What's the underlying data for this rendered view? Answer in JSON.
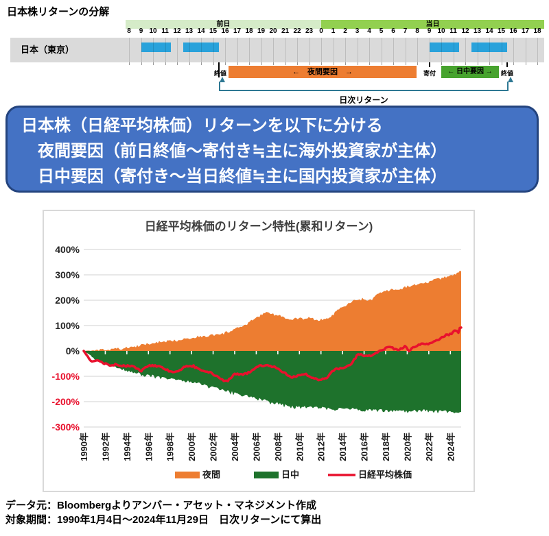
{
  "page_title": "日本株リターンの分解",
  "timeline": {
    "prev_day_label": "前日",
    "current_day_label": "当日",
    "hours": [
      "8",
      "9",
      "10",
      "11",
      "12",
      "13",
      "14",
      "15",
      "16",
      "17",
      "18",
      "19",
      "20",
      "21",
      "22",
      "23",
      "0",
      "1",
      "2",
      "3",
      "4",
      "5",
      "6",
      "7",
      "8",
      "9",
      "10",
      "11",
      "12",
      "13",
      "14",
      "15",
      "16",
      "17",
      "18"
    ],
    "market_label": "日本（東京）",
    "sessions": [
      {
        "day": "prev",
        "start": 9,
        "end": 11.5
      },
      {
        "day": "prev",
        "start": 12.5,
        "end": 15.5
      },
      {
        "day": "cur",
        "start": 9,
        "end": 11.5
      },
      {
        "day": "cur",
        "start": 12.5,
        "end": 15.5
      }
    ],
    "markers": [
      {
        "day": "prev",
        "time": 15.5,
        "len": 22
      },
      {
        "day": "cur",
        "time": 9,
        "len": 7
      },
      {
        "day": "cur",
        "time": 15.5,
        "len": 7
      }
    ],
    "close_label_left": "終値",
    "open_label": "寄付",
    "close_label_right": "終値",
    "night_factor_label": "←　夜間要因　→",
    "day_factor_label": "← 日中要因 →",
    "daily_return_label": "日次リターン"
  },
  "callout": {
    "line1": "日本株（日経平均株価）リターンを以下に分ける",
    "line2": "　夜間要因（前日終値～寄付き≒主に海外投資家が主体）",
    "line3": "　日中要因（寄付き～当日終値≒主に国内投資家が主体）"
  },
  "chart_data": {
    "type": "area+line",
    "title": "日経平均株価のリターン特性(累和リターン)",
    "x_range": [
      1990,
      2025
    ],
    "ylim": [
      -300,
      400
    ],
    "y_tick_values": [
      400,
      300,
      200,
      100,
      0,
      -100,
      -200,
      -300
    ],
    "y_tick_labels": [
      "400%",
      "300%",
      "200%",
      "100%",
      "0%",
      "-100%",
      "-200%",
      "-300%"
    ],
    "x_tick_years": [
      1990,
      1992,
      1994,
      1996,
      1998,
      2000,
      2002,
      2004,
      2006,
      2008,
      2010,
      2012,
      2014,
      2016,
      2018,
      2020,
      2022,
      2024
    ],
    "x_tick_labels": [
      "1990年",
      "1992年",
      "1994年",
      "1996年",
      "1998年",
      "2000年",
      "2002年",
      "2004年",
      "2006年",
      "2008年",
      "2010年",
      "2012年",
      "2014年",
      "2016年",
      "2018年",
      "2020年",
      "2022年",
      "2024年"
    ],
    "grid": true,
    "legend_position": "bottom",
    "negative_tick_color": "#e8112d",
    "series": [
      {
        "name": "夜間",
        "type": "area",
        "color": "#ed7d31",
        "points": [
          [
            1990,
            0
          ],
          [
            1991,
            2
          ],
          [
            1992,
            4
          ],
          [
            1993,
            8
          ],
          [
            1994,
            12
          ],
          [
            1995,
            20
          ],
          [
            1996,
            28
          ],
          [
            1997,
            34
          ],
          [
            1998,
            38
          ],
          [
            1999,
            46
          ],
          [
            2000,
            52
          ],
          [
            2001,
            57
          ],
          [
            2002,
            62
          ],
          [
            2003,
            68
          ],
          [
            2004,
            85
          ],
          [
            2005,
            102
          ],
          [
            2006,
            132
          ],
          [
            2006.8,
            152
          ],
          [
            2007.5,
            148
          ],
          [
            2008.5,
            132
          ],
          [
            2009.3,
            122
          ],
          [
            2010,
            128
          ],
          [
            2011,
            130
          ],
          [
            2011.8,
            121
          ],
          [
            2012.5,
            125
          ],
          [
            2013,
            140
          ],
          [
            2014,
            172
          ],
          [
            2015,
            196
          ],
          [
            2015.8,
            205
          ],
          [
            2016.5,
            198
          ],
          [
            2017,
            215
          ],
          [
            2018,
            238
          ],
          [
            2019,
            242
          ],
          [
            2020,
            252
          ],
          [
            2021,
            266
          ],
          [
            2022,
            272
          ],
          [
            2023,
            285
          ],
          [
            2024,
            298
          ],
          [
            2024.92,
            312
          ]
        ]
      },
      {
        "name": "日中",
        "type": "area",
        "color": "#1e722c",
        "points": [
          [
            1990,
            0
          ],
          [
            1990.5,
            -12
          ],
          [
            1991,
            -28
          ],
          [
            1992,
            -48
          ],
          [
            1993,
            -62
          ],
          [
            1994,
            -72
          ],
          [
            1995,
            -85
          ],
          [
            1996,
            -93
          ],
          [
            1997,
            -100
          ],
          [
            1998,
            -105
          ],
          [
            1999,
            -112
          ],
          [
            2000,
            -119
          ],
          [
            2001,
            -128
          ],
          [
            2002,
            -140
          ],
          [
            2003,
            -152
          ],
          [
            2004,
            -162
          ],
          [
            2005,
            -172
          ],
          [
            2006,
            -184
          ],
          [
            2007,
            -194
          ],
          [
            2008,
            -203
          ],
          [
            2009,
            -212
          ],
          [
            2010,
            -216
          ],
          [
            2011,
            -219
          ],
          [
            2012,
            -221
          ],
          [
            2013,
            -223
          ],
          [
            2014,
            -225
          ],
          [
            2015,
            -226
          ],
          [
            2016,
            -228
          ],
          [
            2017,
            -228
          ],
          [
            2018,
            -229
          ],
          [
            2019,
            -231
          ],
          [
            2020,
            -236
          ],
          [
            2021,
            -230
          ],
          [
            2022,
            -232
          ],
          [
            2023,
            -234
          ],
          [
            2024,
            -236
          ],
          [
            2024.92,
            -239
          ]
        ]
      },
      {
        "name": "日経平均株価",
        "type": "line",
        "color": "#e8112d",
        "points": [
          [
            1990,
            0
          ],
          [
            1990.3,
            -18
          ],
          [
            1990.7,
            -42
          ],
          [
            1991.2,
            -35
          ],
          [
            1991.8,
            -50
          ],
          [
            1992.5,
            -62
          ],
          [
            1993,
            -50
          ],
          [
            1993.8,
            -58
          ],
          [
            1994.5,
            -62
          ],
          [
            1995.3,
            -78
          ],
          [
            1996,
            -55
          ],
          [
            1996.8,
            -62
          ],
          [
            1997.8,
            -75
          ],
          [
            1998.7,
            -82
          ],
          [
            1999.5,
            -62
          ],
          [
            2000.2,
            -58
          ],
          [
            2001,
            -80
          ],
          [
            2002,
            -92
          ],
          [
            2002.8,
            -112
          ],
          [
            2003.3,
            -118
          ],
          [
            2004,
            -95
          ],
          [
            2004.8,
            -92
          ],
          [
            2005.5,
            -78
          ],
          [
            2006.3,
            -62
          ],
          [
            2007,
            -55
          ],
          [
            2007.8,
            -62
          ],
          [
            2008.7,
            -92
          ],
          [
            2009.2,
            -105
          ],
          [
            2009.8,
            -95
          ],
          [
            2010.5,
            -92
          ],
          [
            2011.2,
            -108
          ],
          [
            2011.8,
            -112
          ],
          [
            2012.5,
            -105
          ],
          [
            2013,
            -82
          ],
          [
            2013.5,
            -72
          ],
          [
            2014,
            -68
          ],
          [
            2014.8,
            -48
          ],
          [
            2015.5,
            -12
          ],
          [
            2016,
            -25
          ],
          [
            2016.5,
            -18
          ],
          [
            2017,
            -8
          ],
          [
            2017.8,
            5
          ],
          [
            2018.5,
            15
          ],
          [
            2019,
            5
          ],
          [
            2019.8,
            18
          ],
          [
            2020.2,
            -2
          ],
          [
            2020.8,
            18
          ],
          [
            2021.5,
            32
          ],
          [
            2022,
            30
          ],
          [
            2022.8,
            40
          ],
          [
            2023.5,
            62
          ],
          [
            2024,
            68
          ],
          [
            2024.5,
            82
          ],
          [
            2024.75,
            72
          ],
          [
            2024.92,
            92
          ]
        ]
      }
    ]
  },
  "footer": {
    "line1": "データ元：Bloombergよりアンバー・アセット・マネジメント作成",
    "line2": "対象期間：1990年1月4日～2024年11月29日　日次リターンにて算出"
  }
}
